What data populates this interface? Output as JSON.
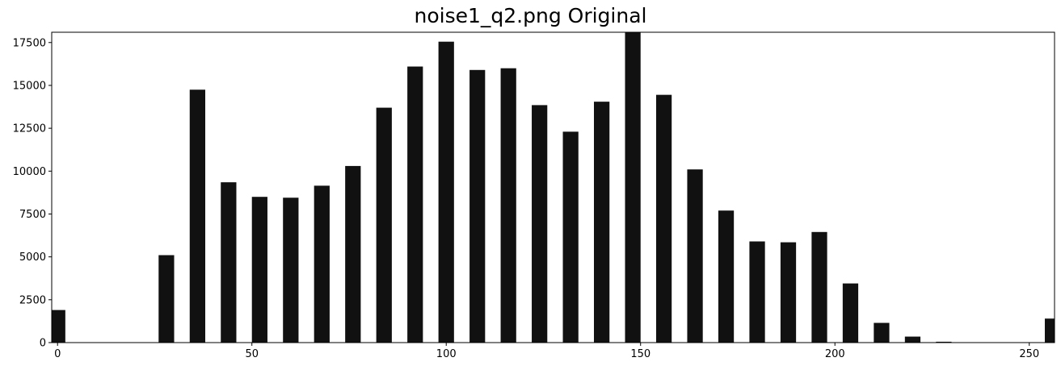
{
  "chart_data": {
    "type": "bar",
    "title": "noise1_q2.png Original",
    "xlabel": "",
    "ylabel": "",
    "xlim": [
      -1.5,
      256.5
    ],
    "ylim": [
      0,
      18100
    ],
    "grid": false,
    "bar_color": "#111111",
    "x": [
      0,
      28,
      36,
      44,
      52,
      60,
      68,
      76,
      84,
      92,
      100,
      108,
      116,
      124,
      132,
      140,
      148,
      156,
      164,
      172,
      180,
      188,
      196,
      204,
      212,
      220,
      228,
      256
    ],
    "values": [
      1900,
      5100,
      14750,
      9350,
      8500,
      8450,
      9150,
      10300,
      13700,
      16100,
      17550,
      15900,
      16000,
      13850,
      12300,
      14050,
      18100,
      14450,
      10100,
      7700,
      5900,
      5850,
      6450,
      3450,
      1150,
      350,
      50,
      1400
    ],
    "x_ticks": [
      0,
      50,
      100,
      150,
      200,
      250
    ],
    "x_tick_labels": [
      "0",
      "50",
      "100",
      "150",
      "200",
      "250"
    ],
    "y_ticks": [
      0,
      2500,
      5000,
      7500,
      10000,
      12500,
      15000,
      17500
    ],
    "y_tick_labels": [
      "0",
      "2500",
      "5000",
      "7500",
      "10000",
      "12500",
      "15000",
      "17500"
    ]
  }
}
